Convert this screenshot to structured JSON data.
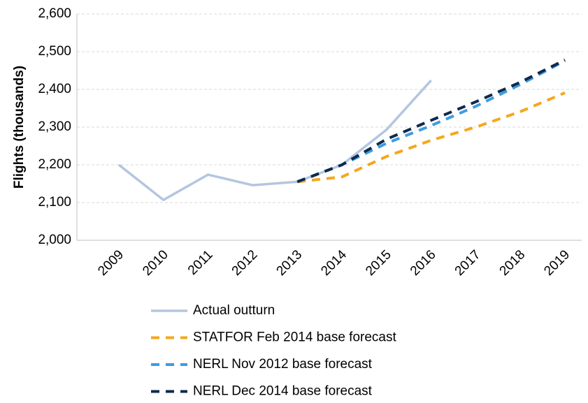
{
  "chart_data": {
    "type": "line",
    "y_label": "Flights (thousands)",
    "categories": [
      "2009",
      "2010",
      "2011",
      "2012",
      "2013",
      "2014",
      "2015",
      "2016",
      "2017",
      "2018",
      "2019"
    ],
    "series": [
      {
        "name": "Actual outturn",
        "color": "#b4c6e0",
        "dashed": false,
        "values": [
          2200,
          2107,
          2174,
          2146,
          2155,
          2200,
          2293,
          2424,
          null,
          null,
          null
        ]
      },
      {
        "name": "STATFOR Feb 2014 base forecast",
        "color": "#f4a81d",
        "dashed": true,
        "values": [
          null,
          null,
          null,
          null,
          2155,
          2168,
          2222,
          2265,
          2300,
          2341,
          2391
        ]
      },
      {
        "name": "NERL Nov 2012 base forecast",
        "color": "#3e9be0",
        "dashed": true,
        "values": [
          null,
          null,
          null,
          null,
          2155,
          2200,
          2257,
          2304,
          2355,
          2413,
          2476
        ]
      },
      {
        "name": "NERL Dec 2014 base forecast",
        "color": "#0e2a4d",
        "dashed": true,
        "values": [
          null,
          null,
          null,
          null,
          2155,
          2200,
          2268,
          2318,
          2367,
          2419,
          2478
        ]
      }
    ],
    "ylim": [
      2000,
      2600
    ],
    "yticks": [
      {
        "value": 2000,
        "label": "2,000"
      },
      {
        "value": 2100,
        "label": "2,100"
      },
      {
        "value": 2200,
        "label": "2,200"
      },
      {
        "value": 2300,
        "label": "2,300"
      },
      {
        "value": 2400,
        "label": "2,400"
      },
      {
        "value": 2500,
        "label": "2,500"
      },
      {
        "value": 2600,
        "label": "2,600"
      }
    ],
    "grid": true
  }
}
